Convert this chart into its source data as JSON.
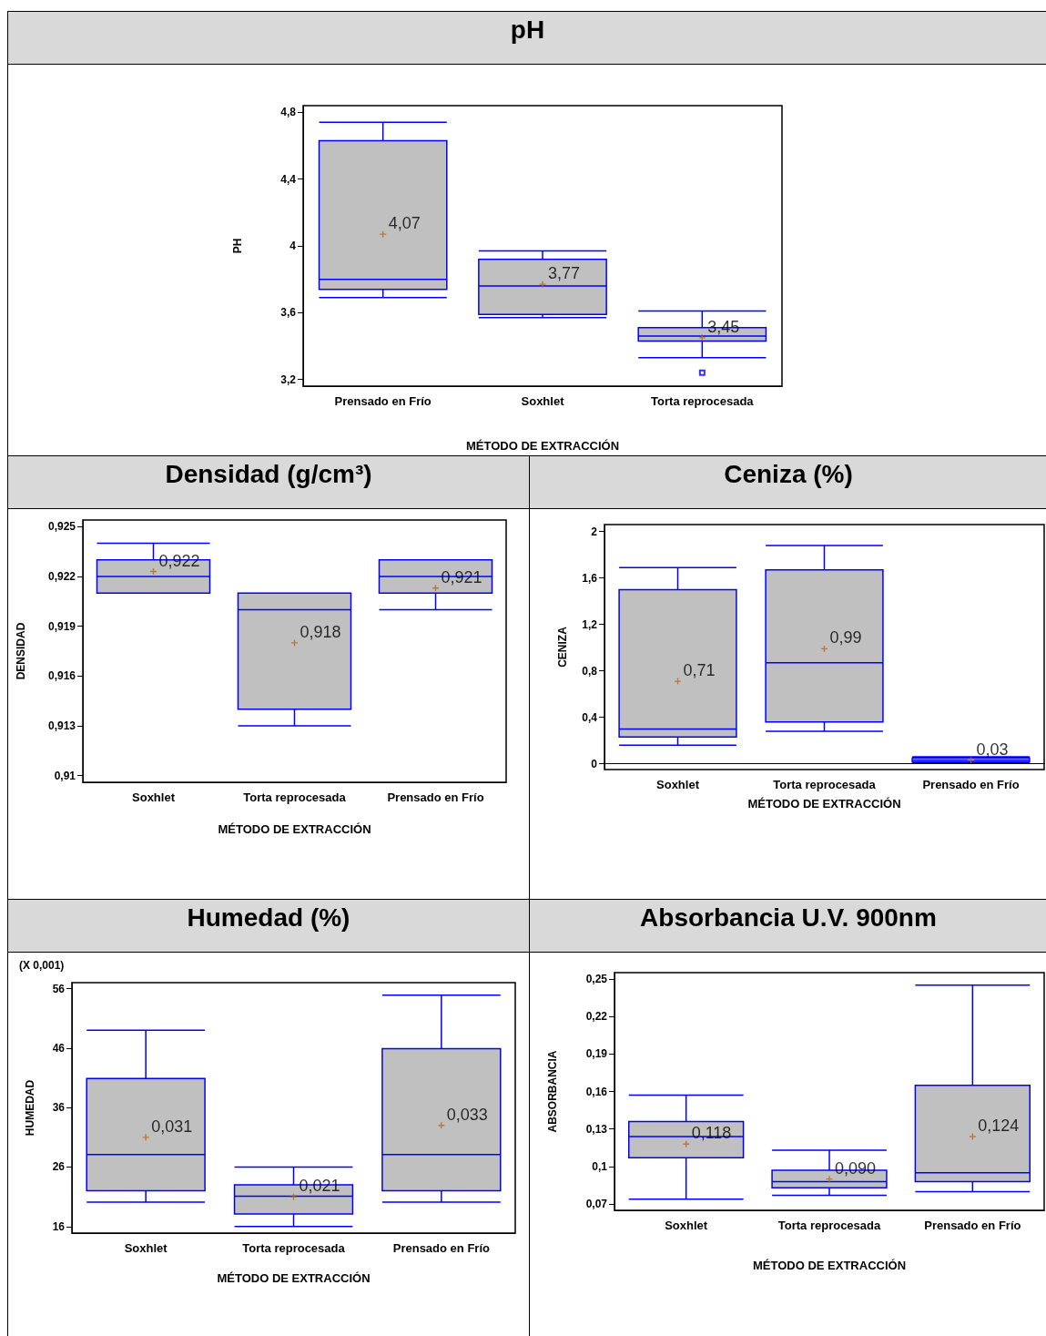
{
  "chart_data": [
    {
      "type": "box",
      "title": "pH",
      "xlabel": "MÉTODO DE EXTRACCIÓN",
      "ylabel": "PH",
      "categories": [
        "Prensado en Frío",
        "Soxhlet",
        "Torta reprocesada"
      ],
      "ylim": [
        3.16,
        4.84
      ],
      "yticks": [
        {
          "value": 3.2,
          "label": "3,2"
        },
        {
          "value": 3.6,
          "label": "3,6"
        },
        4,
        {
          "value": 4.4,
          "label": "4,4"
        },
        {
          "value": 4.8,
          "label": "4,8"
        }
      ],
      "series": [
        {
          "color": "#0000ff",
          "boxes": [
            {
              "low": 3.69,
              "q1": 3.74,
              "median": 3.8,
              "q3": 4.63,
              "high": 4.74,
              "mean": 4.07
            },
            {
              "low": 3.57,
              "q1": 3.59,
              "median": 3.76,
              "q3": 3.92,
              "high": 3.97,
              "mean": 3.77
            },
            {
              "low": 3.33,
              "q1": 3.43,
              "median": 3.46,
              "q3": 3.51,
              "high": 3.61,
              "mean": 3.45,
              "outliers": [
                3.24
              ]
            }
          ]
        }
      ],
      "annotations": [
        "4,07",
        "3,77",
        "3,45"
      ]
    },
    {
      "type": "box",
      "title": "Densidad (g/cm³)",
      "xlabel": "MÉTODO DE EXTRACCIÓN",
      "ylabel": "DENSIDAD",
      "categories": [
        "Soxhlet",
        "Torta reprocesada",
        "Prensado en Frío"
      ],
      "ylim": [
        0.9096,
        0.9254
      ],
      "yticks": [
        {
          "value": 0.91,
          "label": "0,91"
        },
        {
          "value": 0.913,
          "label": "0,913"
        },
        {
          "value": 0.916,
          "label": "0,916"
        },
        {
          "value": 0.919,
          "label": "0,919"
        },
        {
          "value": 0.922,
          "label": "0,922"
        },
        {
          "value": 0.925,
          "label": "0,925"
        }
      ],
      "series": [
        {
          "color": "#0000ff",
          "boxes": [
            {
              "low": 0.921,
              "q1": 0.921,
              "median": 0.922,
              "q3": 0.923,
              "high": 0.924,
              "mean": 0.9223
            },
            {
              "low": 0.913,
              "q1": 0.914,
              "median": 0.92,
              "q3": 0.921,
              "high": 0.921,
              "mean": 0.918
            },
            {
              "low": 0.92,
              "q1": 0.921,
              "median": 0.922,
              "q3": 0.923,
              "high": 0.923,
              "mean": 0.9213
            }
          ]
        }
      ],
      "annotations": [
        "0,922",
        "0,918",
        "0,921"
      ]
    },
    {
      "type": "box",
      "title": "Ceniza (%)",
      "xlabel": "MÉTODO DE EXTRACCIÓN",
      "ylabel": "CENIZA",
      "categories": [
        "Soxhlet",
        "Torta reprocesada",
        "Prensado en Frío"
      ],
      "ylim": [
        -0.05,
        2.06
      ],
      "yticks": [
        0,
        {
          "value": 0.4,
          "label": "0,4"
        },
        {
          "value": 0.8,
          "label": "0,8"
        },
        {
          "value": 1.2,
          "label": "1,2"
        },
        {
          "value": 1.6,
          "label": "1,6"
        },
        2
      ],
      "series": [
        {
          "color": "#0000ff",
          "boxes": [
            {
              "low": 0.16,
              "q1": 0.23,
              "median": 0.3,
              "q3": 1.5,
              "high": 1.69,
              "mean": 0.71
            },
            {
              "low": 0.28,
              "q1": 0.36,
              "median": 0.87,
              "q3": 1.67,
              "high": 1.88,
              "mean": 0.99
            },
            {
              "low": 0.01,
              "q1": 0.015,
              "median": 0.03,
              "q3": 0.05,
              "high": 0.06,
              "mean": 0.03
            }
          ]
        }
      ],
      "annotations": [
        "0,71",
        "0,99",
        "0,03"
      ]
    },
    {
      "type": "box",
      "title": "Humedad (%)",
      "xlabel": "MÉTODO DE EXTRACCIÓN",
      "ylabel": "HUMEDAD",
      "categories": [
        "Soxhlet",
        "Torta reprocesada",
        "Prensado en Frío"
      ],
      "ylim": [
        14.9,
        57
      ],
      "yticks": [
        16,
        26,
        36,
        46,
        56
      ],
      "series": [
        {
          "color": "#0000ff",
          "boxes": [
            {
              "low": 20.1,
              "q1": 22,
              "median": 28.1,
              "q3": 40.9,
              "high": 49,
              "mean": 31
            },
            {
              "low": 16,
              "q1": 18.1,
              "median": 21.1,
              "q3": 23,
              "high": 26,
              "mean": 21
            },
            {
              "low": 20.1,
              "q1": 22,
              "median": 28.1,
              "q3": 45.9,
              "high": 54.9,
              "mean": 33
            }
          ]
        }
      ],
      "annotations": [
        "(X 0,001)",
        "0,031",
        "0,021",
        "0,033"
      ]
    },
    {
      "type": "box",
      "title": "Absorbancia U.V. 900nm",
      "xlabel": "MÉTODO DE EXTRACCIÓN",
      "ylabel": "ABSORBANCIA",
      "categories": [
        "Soxhlet",
        "Torta reprocesada",
        "Prensado en Frío"
      ],
      "ylim": [
        0.065,
        0.255
      ],
      "yticks": [
        {
          "value": 0.07,
          "label": "0,07"
        },
        {
          "value": 0.1,
          "label": "0,1"
        },
        {
          "value": 0.13,
          "label": "0,13"
        },
        {
          "value": 0.16,
          "label": "0,16"
        },
        {
          "value": 0.19,
          "label": "0,19"
        },
        {
          "value": 0.22,
          "label": "0,22"
        },
        {
          "value": 0.25,
          "label": "0,25"
        }
      ],
      "series": [
        {
          "color": "#0000ff",
          "boxes": [
            {
              "low": 0.074,
              "q1": 0.107,
              "median": 0.124,
              "q3": 0.136,
              "high": 0.157,
              "mean": 0.118
            },
            {
              "low": 0.077,
              "q1": 0.083,
              "median": 0.088,
              "q3": 0.097,
              "high": 0.113,
              "mean": 0.09
            },
            {
              "low": 0.08,
              "q1": 0.088,
              "median": 0.095,
              "q3": 0.165,
              "high": 0.245,
              "mean": 0.124
            }
          ]
        }
      ],
      "annotations": [
        "0,118",
        "0,090",
        "0,124"
      ]
    }
  ]
}
